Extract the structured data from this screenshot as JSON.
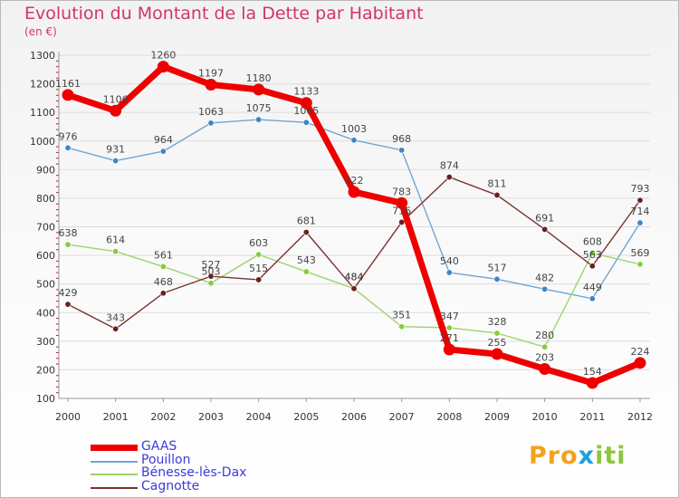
{
  "title": "Evolution du Montant de la Dette par Habitant",
  "subtitle": "(en €)",
  "brand": "Proxiti",
  "colors": {
    "title": "#d1346b",
    "legend_text": "#3b3bd8",
    "grid": "#dcdcdc",
    "axis_text": "#333333"
  },
  "chart_data": {
    "type": "line",
    "title": "Evolution du Montant de la Dette par Habitant",
    "subtitle": "(en €)",
    "x": [
      "2000",
      "2001",
      "2002",
      "2003",
      "2004",
      "2005",
      "2006",
      "2007",
      "2008",
      "2009",
      "2010",
      "2011",
      "2012"
    ],
    "ylim": [
      100,
      1300
    ],
    "yticks": [
      "100",
      "200",
      "300",
      "400",
      "500",
      "600",
      "700",
      "800",
      "900",
      "1000",
      "1100",
      "1200",
      "1300"
    ],
    "grid": "horizontal",
    "legend_position": "bottom-left",
    "series": [
      {
        "name": "GAAS",
        "color": "#ee0000",
        "emphasis": "thick",
        "values": [
          1161,
          1106,
          1260,
          1197,
          1180,
          1133,
          822,
          783,
          271,
          255,
          203,
          154,
          224
        ],
        "labels": [
          "1161",
          "1106",
          "1260",
          "1197",
          "1180",
          "1133",
          "822",
          "783",
          "271",
          "255",
          "203",
          "154",
          "224"
        ]
      },
      {
        "name": "Pouillon",
        "color": "#6ea6d6",
        "point_color": "#3e86c6",
        "values": [
          976,
          931,
          964,
          1063,
          1075,
          1065,
          1003,
          968,
          540,
          517,
          482,
          449,
          714
        ],
        "labels": [
          "976",
          "931",
          "964",
          "1063",
          "1075",
          "1065",
          "1003",
          "968",
          "540",
          "517",
          "482",
          "449",
          "714"
        ]
      },
      {
        "name": "Bénesse-lès-Dax",
        "color": "#9ed36a",
        "point_color": "#86cc3c",
        "values": [
          638,
          614,
          561,
          503,
          603,
          543,
          484,
          351,
          347,
          328,
          280,
          608,
          569
        ],
        "labels": [
          "638",
          "614",
          "561",
          "503",
          "603",
          "543",
          "484",
          "351",
          "347",
          "328",
          "280",
          "608",
          "569"
        ]
      },
      {
        "name": "Cagnotte",
        "color": "#7a3232",
        "point_color": "#6a1f1f",
        "values": [
          429,
          343,
          468,
          527,
          515,
          681,
          484,
          716,
          874,
          811,
          691,
          563,
          793
        ],
        "labels": [
          "429",
          "343",
          "468",
          "527",
          "515",
          "681",
          "484",
          "716",
          "874",
          "811",
          "691",
          "563",
          "793"
        ]
      }
    ]
  }
}
